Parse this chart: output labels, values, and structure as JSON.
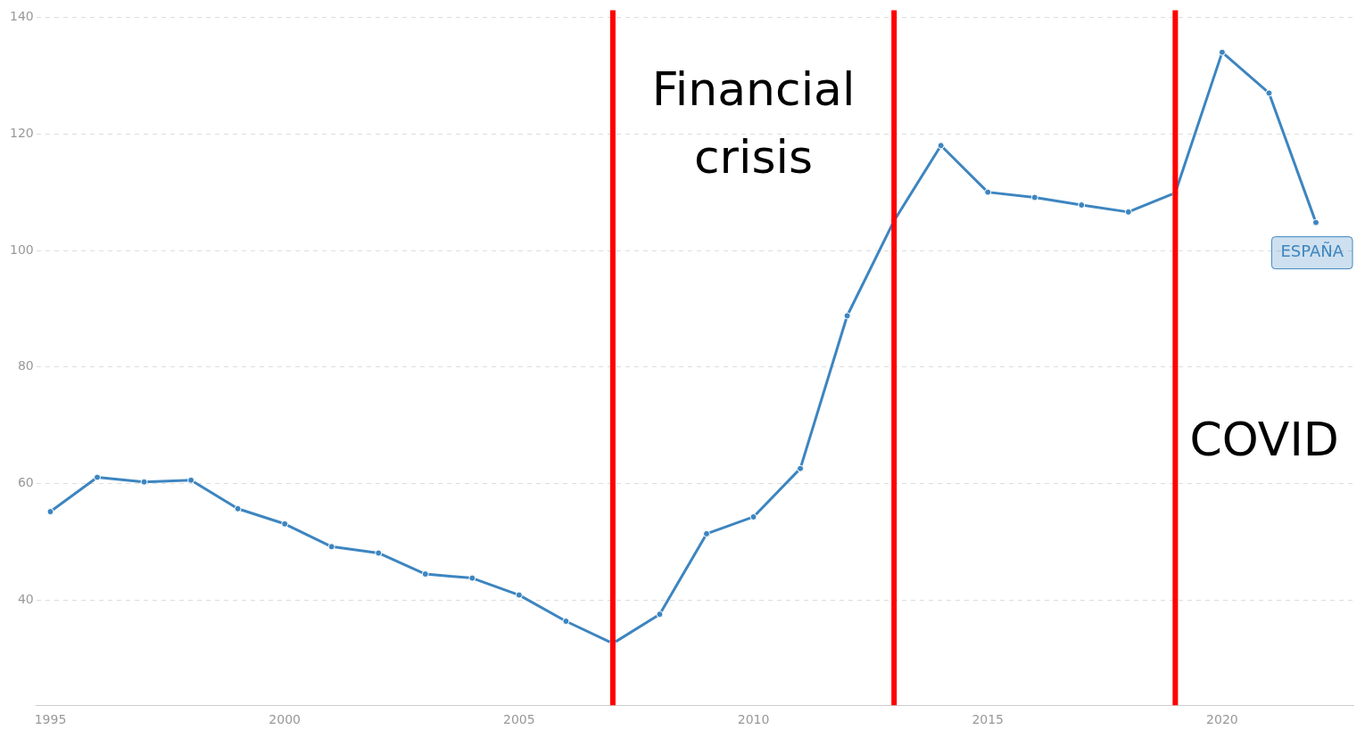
{
  "chart_data": {
    "type": "line",
    "x": [
      1995,
      1996,
      1997,
      1998,
      1999,
      2000,
      2001,
      2002,
      2003,
      2004,
      2005,
      2006,
      2007,
      2008,
      2009,
      2010,
      2011,
      2012,
      2013,
      2014,
      2015,
      2016,
      2017,
      2018,
      2019,
      2020,
      2021,
      2022
    ],
    "series": [
      {
        "name": "ESPAÑA",
        "color": "#3d85c0",
        "values": [
          55.2,
          61.1,
          60.3,
          60.6,
          55.7,
          53.1,
          49.2,
          48.1,
          44.5,
          43.8,
          40.9,
          36.4,
          32.6,
          37.6,
          51.4,
          54.3,
          62.6,
          88.8,
          105.1,
          118.0,
          110.0,
          109.1,
          107.8,
          106.6,
          109.9,
          134.0,
          127.0,
          104.8
        ]
      }
    ],
    "xlim": [
      1994.7,
      2022.8
    ],
    "xticks": [
      1995,
      2000,
      2005,
      2010,
      2015,
      2020
    ],
    "ylim": [
      22,
      140
    ],
    "yticks": [
      40,
      60,
      80,
      100,
      120,
      140
    ],
    "grid": "y",
    "legend": false,
    "marker": "circle",
    "line_style": "solid",
    "ref_lines": [
      {
        "axis": "x",
        "value": 2007,
        "color": "#ff0000"
      },
      {
        "axis": "x",
        "value": 2013,
        "color": "#ff0000"
      },
      {
        "axis": "x",
        "value": 2019,
        "color": "#ff0000"
      }
    ],
    "annotations": [
      "Financial crisis",
      "COVID"
    ]
  }
}
